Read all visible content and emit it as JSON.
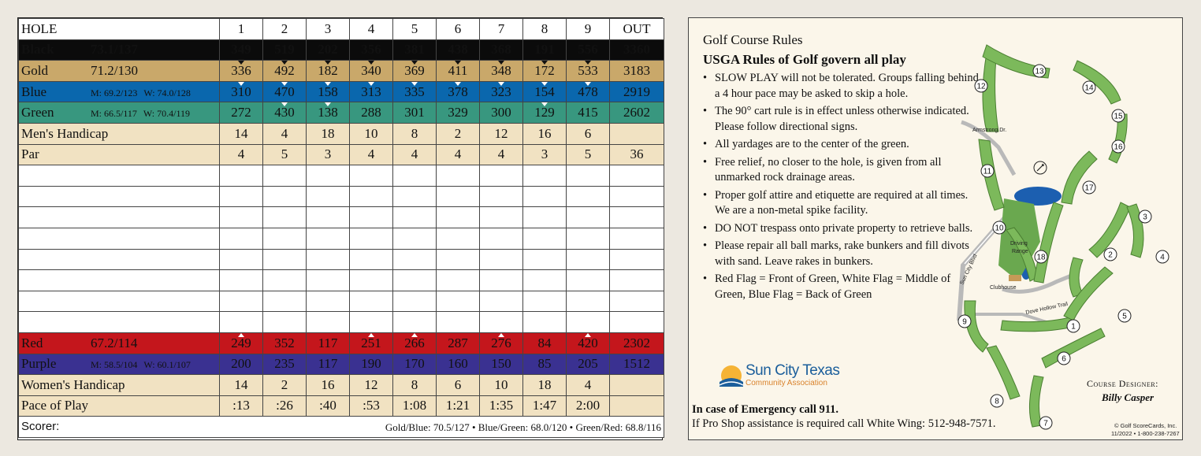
{
  "scorecard": {
    "header": {
      "label": "HOLE",
      "holes": [
        "1",
        "2",
        "3",
        "4",
        "5",
        "6",
        "7",
        "8",
        "9"
      ],
      "total": "OUT"
    },
    "tees": [
      {
        "key": "black",
        "name": "Black",
        "rating": "73.1/137",
        "yards": [
          "349",
          "519",
          "202",
          "356",
          "381",
          "438",
          "368",
          "191",
          "556"
        ],
        "total": "3360"
      },
      {
        "key": "gold",
        "name": "Gold",
        "rating": "71.2/130",
        "yards": [
          "336",
          "492",
          "182",
          "340",
          "369",
          "411",
          "348",
          "172",
          "533"
        ],
        "total": "3183"
      },
      {
        "key": "blue",
        "name": "Blue",
        "rating_m": "M: 69.2/123",
        "rating_w": "W: 74.0/128",
        "yards": [
          "310",
          "470",
          "158",
          "313",
          "335",
          "378",
          "323",
          "154",
          "478"
        ],
        "total": "2919"
      },
      {
        "key": "green",
        "name": "Green",
        "rating_m": "M: 66.5/117",
        "rating_w": "W: 70.4/119",
        "yards": [
          "272",
          "430",
          "138",
          "288",
          "301",
          "329",
          "300",
          "129",
          "415"
        ],
        "total": "2602"
      }
    ],
    "mens_handicap": {
      "label": "Men's Handicap",
      "values": [
        "14",
        "4",
        "18",
        "10",
        "8",
        "2",
        "12",
        "16",
        "6"
      ],
      "total": ""
    },
    "par": {
      "label": "Par",
      "values": [
        "4",
        "5",
        "3",
        "4",
        "4",
        "4",
        "4",
        "3",
        "5"
      ],
      "total": "36"
    },
    "women_tees": [
      {
        "key": "red",
        "name": "Red",
        "rating": "67.2/114",
        "yards": [
          "249",
          "352",
          "117",
          "251",
          "266",
          "287",
          "276",
          "84",
          "420"
        ],
        "total": "2302"
      },
      {
        "key": "purple",
        "name": "Purple",
        "rating_m": "M: 58.5/104",
        "rating_w": "W: 60.1/107",
        "yards": [
          "200",
          "235",
          "117",
          "190",
          "170",
          "160",
          "150",
          "85",
          "205"
        ],
        "total": "1512"
      }
    ],
    "womens_handicap": {
      "label": "Women's Handicap",
      "values": [
        "14",
        "2",
        "16",
        "12",
        "8",
        "6",
        "10",
        "18",
        "4"
      ],
      "total": ""
    },
    "pace": {
      "label": "Pace of Play",
      "values": [
        ":13",
        ":26",
        ":40",
        ":53",
        "1:08",
        "1:21",
        "1:35",
        "1:47",
        "2:00"
      ],
      "total": ""
    },
    "scorer": {
      "label": "Scorer:",
      "ratings": "Gold/Blue: 70.5/127 • Blue/Green: 68.0/120 • Green/Red: 68.8/116"
    }
  },
  "info": {
    "title": "Golf Course Rules",
    "subtitle": "USGA Rules of Golf govern all play",
    "rules": [
      "SLOW PLAY will not be tolerated. Groups falling behind a 4 hour pace may be asked to skip a hole.",
      "The 90° cart rule is in effect unless otherwise indicated. Please follow directional signs.",
      "All yardages are to the center of the green.",
      "Free relief, no closer to the hole, is given from all unmarked rock drainage areas.",
      "Proper golf attire and etiquette are required at all times. We are a non-metal spike facility.",
      "DO NOT trespass onto private property to retrieve balls.",
      "Please repair all ball marks, rake bunkers and fill divots with sand. Leave rakes in bunkers.",
      "Red Flag = Front of Green, White Flag = Middle of Green, Blue Flag = Back of Green"
    ],
    "logo_main": "Sun City Texas",
    "logo_sub": "Community Association",
    "emergency": "In case of Emergency call 911.",
    "proshop": "If Pro Shop assistance is required call White Wing: 512-948-7571.",
    "designer_label": "Course Designer:",
    "designer": "Billy Casper",
    "copyright": "© Golf ScoreCards, Inc.",
    "copyright_date": "11/2022 • 1-800-238-7267",
    "map": {
      "labels": {
        "armstrong": "Armstrong Dr.",
        "sun_city": "Sun City Blvd",
        "dove": "Dove Hollow Trail",
        "driving1": "Driving",
        "driving2": "Range",
        "clubhouse": "Clubhouse"
      },
      "holes": [
        "1",
        "2",
        "3",
        "4",
        "5",
        "6",
        "7",
        "8",
        "9",
        "10",
        "11",
        "12",
        "13",
        "14",
        "15",
        "16",
        "17",
        "18"
      ]
    }
  },
  "colors": {
    "black": "#0b0b0b",
    "gold": "#c9a86a",
    "blue": "#0a67ad",
    "green": "#38977f",
    "tan": "#f1e2c2",
    "red": "#c4161c",
    "purple": "#3a3191"
  }
}
